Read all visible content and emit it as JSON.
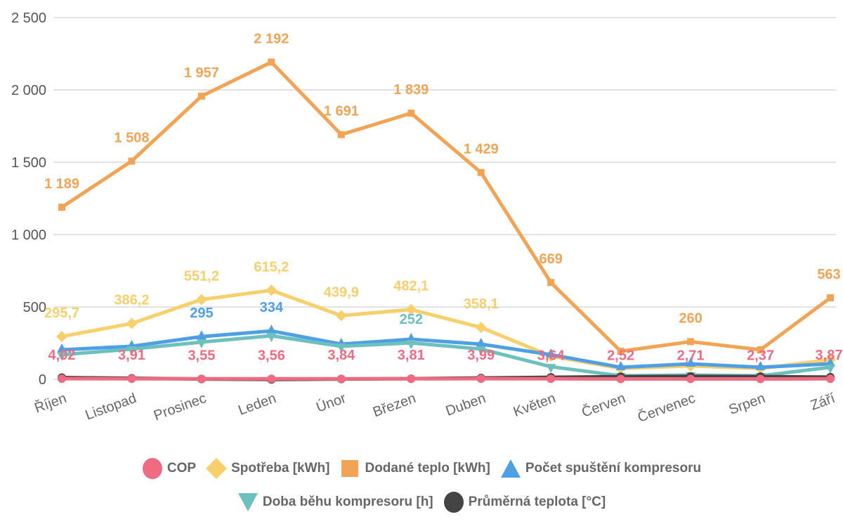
{
  "chart_data": {
    "type": "line",
    "categories": [
      "Říjen",
      "Listopad",
      "Prosinec",
      "Leden",
      "Únor",
      "Březen",
      "Duben",
      "Květen",
      "Červen",
      "Červenec",
      "Srpen",
      "Září"
    ],
    "ylim": [
      0,
      2500
    ],
    "yticks": [
      0,
      500,
      1000,
      1500,
      2000,
      2500
    ],
    "ytick_labels": [
      "0",
      "500",
      "1 000",
      "1 500",
      "2 000",
      "2 500"
    ],
    "grid": true,
    "legend_position": "bottom",
    "series": [
      {
        "name": "COP",
        "color": "#ee6b82",
        "marker": "circle",
        "values": [
          4.02,
          3.91,
          3.55,
          3.56,
          3.84,
          3.81,
          3.99,
          3.64,
          2.52,
          2.71,
          2.37,
          3.87
        ],
        "labels": [
          "4,02",
          "3,91",
          "3,55",
          "3,56",
          "3,84",
          "3,81",
          "3,99",
          "3,64",
          "2,52",
          "2,71",
          "2,37",
          "3,87"
        ]
      },
      {
        "name": "Spotřeba [kWh]",
        "color": "#f7cf6b",
        "marker": "diamond",
        "values": [
          295.7,
          386.2,
          551.2,
          615.2,
          439.9,
          482.1,
          358.1,
          160,
          75,
          92,
          75,
          136
        ],
        "labels": [
          "295,7",
          "386,2",
          "551,2",
          "615,2",
          "439,9",
          "482,1",
          "358,1",
          null,
          null,
          null,
          null,
          null
        ]
      },
      {
        "name": "Dodané teplo [kWh]",
        "color": "#f2a353",
        "marker": "square",
        "values": [
          1189,
          1508,
          1957,
          2192,
          1691,
          1839,
          1429,
          669,
          194,
          260,
          204,
          563
        ],
        "labels": [
          "1 189",
          "1 508",
          "1 957",
          "2 192",
          "1 691",
          "1 839",
          "1 429",
          "669",
          null,
          "260",
          null,
          "563"
        ]
      },
      {
        "name": "Počet spuštění kompresoru",
        "color": "#4e9fe5",
        "marker": "triangle",
        "values": [
          204,
          228,
          295,
          334,
          243,
          277,
          243,
          170,
          83,
          107,
          83,
          107
        ],
        "labels": [
          null,
          null,
          "295",
          "334",
          null,
          null,
          null,
          null,
          null,
          null,
          null,
          null
        ]
      },
      {
        "name": "Doba běhu kompresoru [h]",
        "color": "#6cc0bd",
        "marker": "triangle-down",
        "values": [
          170,
          209,
          257,
          301,
          228,
          252,
          209,
          87,
          24,
          29,
          24,
          83
        ],
        "labels": [
          null,
          null,
          null,
          null,
          null,
          "252",
          null,
          null,
          null,
          null,
          null,
          null
        ]
      },
      {
        "name": "Průměrná teplota [°C]",
        "color": "#444444",
        "marker": "circle",
        "values": [
          12,
          7,
          2,
          -1,
          2,
          4,
          9,
          14,
          18,
          20,
          19,
          15
        ],
        "labels": [
          null,
          null,
          null,
          null,
          null,
          null,
          null,
          null,
          null,
          null,
          null,
          null
        ]
      }
    ]
  }
}
